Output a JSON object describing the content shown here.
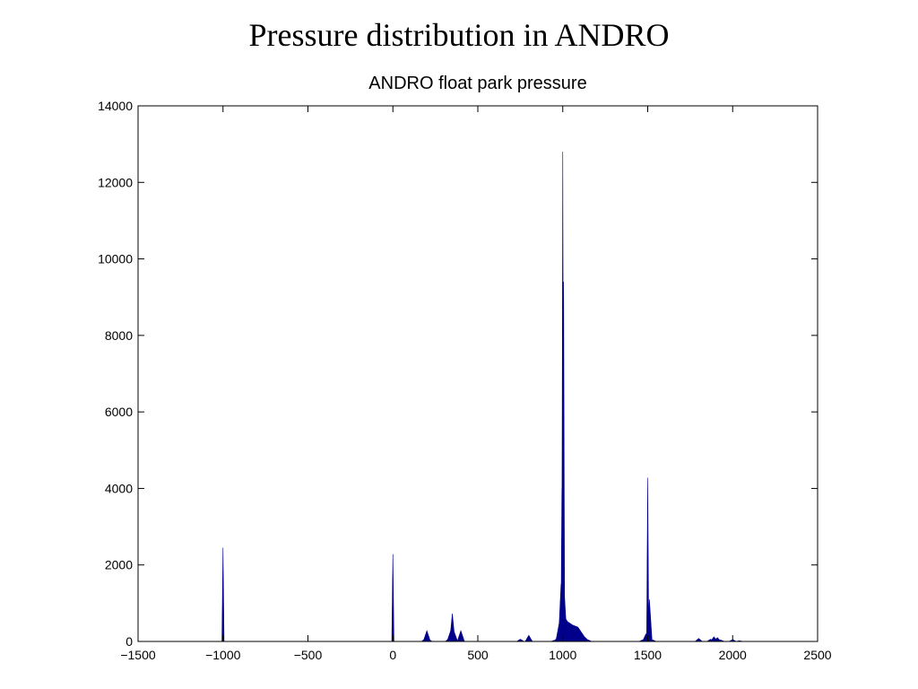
{
  "slide": {
    "title": "Pressure distribution in ANDRO"
  },
  "chart_data": {
    "type": "area",
    "title": "ANDRO float park pressure",
    "xlabel": "",
    "ylabel": "",
    "xlim": [
      -1500,
      2500
    ],
    "ylim": [
      0,
      14000
    ],
    "xticks": [
      -1500,
      -1000,
      -500,
      0,
      500,
      1000,
      1500,
      2000,
      2500
    ],
    "xtick_labels": [
      "−1500",
      "−1000",
      "−500",
      "0",
      "500",
      "1000",
      "1500",
      "2000",
      "2500"
    ],
    "yticks": [
      0,
      2000,
      4000,
      6000,
      8000,
      10000,
      12000,
      14000
    ],
    "ytick_labels": [
      "0",
      "2000",
      "4000",
      "6000",
      "8000",
      "10000",
      "12000",
      "14000"
    ],
    "grid": false,
    "fill_color": "#00008b",
    "x": [
      -1000,
      0,
      180,
      190,
      200,
      210,
      220,
      330,
      340,
      350,
      360,
      370,
      400,
      410,
      750,
      800,
      950,
      970,
      980,
      990,
      995,
      1000,
      1005,
      1010,
      1020,
      1040,
      1060,
      1080,
      1100,
      1120,
      1150,
      1470,
      1490,
      1500,
      1510,
      1530,
      1800,
      1870,
      1890,
      1910,
      1930,
      2000,
      2040
    ],
    "values": [
      2450,
      2280,
      10,
      80,
      280,
      60,
      10,
      80,
      280,
      730,
      260,
      30,
      280,
      20,
      60,
      160,
      30,
      120,
      500,
      1500,
      4000,
      12800,
      9400,
      1200,
      550,
      430,
      400,
      380,
      300,
      150,
      40,
      40,
      200,
      4280,
      1100,
      40,
      80,
      60,
      120,
      100,
      40,
      50,
      20
    ]
  }
}
